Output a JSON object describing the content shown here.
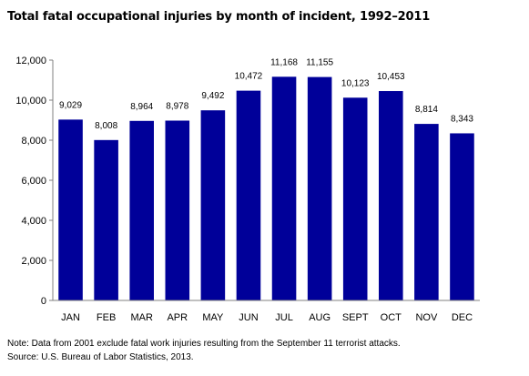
{
  "chart_data": {
    "type": "bar",
    "title": "Total fatal occupational injuries by month of incident, 1992–2011",
    "xlabel": "",
    "ylabel": "",
    "categories": [
      "JAN",
      "FEB",
      "MAR",
      "APR",
      "MAY",
      "JUN",
      "JUL",
      "AUG",
      "SEPT",
      "OCT",
      "NOV",
      "DEC"
    ],
    "values": [
      9029,
      8008,
      8964,
      8978,
      9492,
      10472,
      11168,
      11155,
      10123,
      10453,
      8814,
      8343
    ],
    "data_labels": [
      "9,029",
      "8,008",
      "8,964",
      "8,978",
      "9,492",
      "10,472",
      "11,168",
      "11,155",
      "10,123",
      "10,453",
      "8,814",
      "8,343"
    ],
    "ylim": [
      0,
      12000
    ],
    "yticks": [
      0,
      2000,
      4000,
      6000,
      8000,
      10000,
      12000
    ],
    "ytick_labels": [
      "0",
      "2,000",
      "4,000",
      "6,000",
      "8,000",
      "10,000",
      "12,000"
    ],
    "grid": false,
    "legend": "none",
    "bar_color": "#000099",
    "note": "Note: Data from 2001 exclude fatal work injuries resulting from the September 11 terrorist attacks.",
    "source": "Source: U.S. Bureau of Labor Statistics, 2013."
  }
}
